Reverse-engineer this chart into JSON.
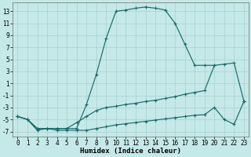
{
  "background_color": "#c5e8e8",
  "grid_color": "#a8d0d0",
  "line_color": "#1a6b6b",
  "xlim": [
    -0.5,
    23.5
  ],
  "ylim": [
    -7.8,
    14.5
  ],
  "xticks": [
    0,
    1,
    2,
    3,
    4,
    5,
    6,
    7,
    8,
    9,
    10,
    11,
    12,
    13,
    14,
    15,
    16,
    17,
    18,
    19,
    20,
    21,
    22,
    23
  ],
  "yticks": [
    -7,
    -5,
    -3,
    -1,
    1,
    3,
    5,
    7,
    9,
    11,
    13
  ],
  "xlabel": "Humidex (Indice chaleur)",
  "curve_bell_x": [
    0,
    1,
    2,
    3,
    4,
    5,
    6,
    7,
    8,
    9,
    10,
    11,
    12,
    13,
    14,
    15,
    16,
    17,
    18,
    19,
    20
  ],
  "curve_bell_y": [
    -4.5,
    -5.0,
    -6.5,
    -6.5,
    -6.5,
    -6.5,
    -6.5,
    -2.5,
    2.5,
    8.5,
    13.0,
    13.2,
    13.5,
    13.7,
    13.5,
    13.2,
    11.0,
    7.5,
    4.0,
    4.0,
    4.0
  ],
  "curve_diag_x": [
    0,
    1,
    2,
    3,
    4,
    5,
    6,
    7,
    8,
    9,
    10,
    11,
    12,
    13,
    14,
    15,
    16,
    17,
    18,
    19,
    20,
    21,
    22,
    23
  ],
  "curve_diag_y": [
    -4.5,
    -5.0,
    -6.5,
    -6.5,
    -6.5,
    -6.5,
    -5.5,
    -4.5,
    -3.5,
    -3.0,
    -2.8,
    -2.5,
    -2.3,
    -2.0,
    -1.8,
    -1.5,
    -1.2,
    -0.8,
    -0.5,
    -0.2,
    4.0,
    4.2,
    4.4,
    -2.0
  ],
  "curve_flat_x": [
    0,
    1,
    2,
    3,
    4,
    5,
    6,
    7,
    8,
    9,
    10,
    11,
    12,
    13,
    14,
    15,
    16,
    17,
    18,
    19,
    20,
    21,
    22,
    23
  ],
  "curve_flat_y": [
    -4.5,
    -5.0,
    -6.8,
    -6.5,
    -6.8,
    -6.8,
    -6.8,
    -6.8,
    -6.5,
    -6.2,
    -5.9,
    -5.7,
    -5.5,
    -5.3,
    -5.1,
    -4.9,
    -4.7,
    -4.5,
    -4.3,
    -4.2,
    -3.0,
    -5.0,
    -5.8,
    -2.0
  ],
  "tick_fontsize": 5.5,
  "xlabel_fontsize": 6.5
}
